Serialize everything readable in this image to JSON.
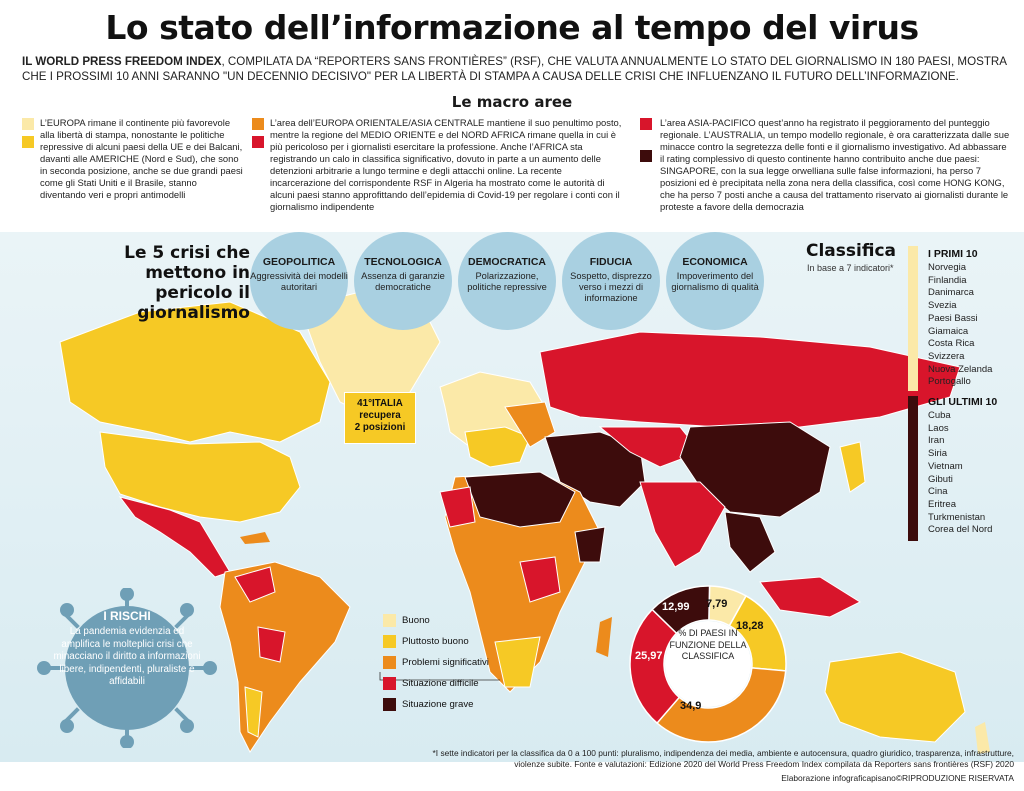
{
  "title": "Lo stato dell’informazione al tempo del virus",
  "subtitle_bold": "IL WORLD PRESS FREEDOM INDEX",
  "subtitle_rest": ", COMPILATA DA “REPORTERS SANS FRONTIÈRES” (RSF), CHE VALUTA ANNUALMENTE LO STATO DEL GIORNALISMO IN 180 PAESI, MOSTRA CHE I PROSSIMI 10 ANNI SARANNO \"UN DECENNIO DECISIVO\" PER LA LIBERTÀ DI STAMPA A CAUSA DELLE CRISI CHE INFLUENZANO IL FUTURO DELL’INFORMAZIONE.",
  "macro_title": "Le macro aree",
  "areas": {
    "europa": "L’EUROPA rimane il continente più favorevole alla libertà di stampa, nonostante le politiche repressive di alcuni paesi della UE e dei Balcani, davanti alle AMERICHE (Nord e Sud), che sono in seconda posizione, anche se due grandi paesi come gli Stati Uniti e il Brasile, stanno diventando veri e propri antimodelli",
    "est": "L’area dell’EUROPA ORIENTALE/ASIA CENTRALE mantiene il suo penultimo posto, mentre la regione del MEDIO ORIENTE e del NORD AFRICA rimane quella in cui è più pericoloso per i giornalisti esercitare la professione. Anche l’AFRICA sta registrando un calo in classifica significativo, dovuto in parte a un aumento delle detenzioni arbitrarie a lungo termine e degli attacchi online. La recente incarcerazione del corrispondente RSF in Algeria ha mostrato come le autorità di alcuni paesi stanno approfittando dell’epidemia di Covid-19 per regolare i conti con il giornalismo indipendente",
    "asia": "L’area ASIA-PACIFICO quest’anno ha registrato il peggioramento del punteggio regionale. L’AUSTRALIA, un tempo modello regionale, è ora caratterizzata dalle sue minacce contro la segretezza delle fonti e il giornalismo investigativo. Ad abbassare il rating complessivo di questo continente hanno contribuito anche due paesi: SINGAPORE, con la sua legge orwelliana sulle false informazioni, ha perso 7 posizioni ed è precipitata nella zona nera della classifica, così come HONG KONG, che ha perso 7 posti anche a causa del trattamento riservato ai giornalisti durante le proteste a favore della democrazia"
  },
  "crisis_heading": "Le 5 crisi che mettono in pericolo il giornalismo",
  "crises": [
    {
      "title": "GEOPOLITICA",
      "desc": "Aggressività dei modelli autoritari"
    },
    {
      "title": "TECNOLOGICA",
      "desc": "Assenza di garanzie democratiche"
    },
    {
      "title": "DEMOCRATICA",
      "desc": "Polarizzazione, politiche repressive"
    },
    {
      "title": "FIDUCIA",
      "desc": "Sospetto, disprezzo verso i mezzi di informazione"
    },
    {
      "title": "ECONOMICA",
      "desc": "Impoverimento del giornalismo di qualità"
    }
  ],
  "classifica": {
    "title": "Classifica",
    "sub": "In base a 7 indicatori*",
    "top_label": "I PRIMI 10",
    "top": [
      "Norvegia",
      "Finlandia",
      "Danimarca",
      "Svezia",
      "Paesi Bassi",
      "Giamaica",
      "Costa Rica",
      "Svizzera",
      "Nuova Zelanda",
      "Portogallo"
    ],
    "bottom_label": "GLI ULTIMI 10",
    "bottom": [
      "Cuba",
      "Laos",
      "Iran",
      "Siria",
      "Vietnam",
      "Gibuti",
      "Cina",
      "Eritrea",
      "Turkmenistan",
      "Corea del Nord"
    ]
  },
  "italia": {
    "line1": "41°ITALIA",
    "line2": "recupera",
    "line3": "2 posizioni"
  },
  "rischi": {
    "title": "I RISCHI",
    "text": "La pandemia evidenzia ed amplifica le molteplici crisi che minacciano il diritto a informazioni libere, indipendenti, pluraliste e affidabili"
  },
  "legend": [
    {
      "label": "Buono",
      "color": "#fbe9a8"
    },
    {
      "label": "Pluttosto buono",
      "color": "#f6c925"
    },
    {
      "label": "Problemi significativi",
      "color": "#ec8b1c"
    },
    {
      "label": "Situazione difficile",
      "color": "#d8152b"
    },
    {
      "label": "Situazione grave",
      "color": "#3d0c0c"
    }
  ],
  "donut": {
    "center": "% DI PAESI IN FUNZIONE DELLA CLASSIFICA",
    "slices": [
      {
        "label": "7,79",
        "value": 7.79,
        "color": "#fbe9a8"
      },
      {
        "label": "18,28",
        "value": 18.28,
        "color": "#f6c925"
      },
      {
        "label": "34,9",
        "value": 34.9,
        "color": "#ec8b1c"
      },
      {
        "label": "25,97",
        "value": 25.97,
        "color": "#d8152b"
      },
      {
        "label": "12,99",
        "value": 12.99,
        "color": "#3d0c0c"
      }
    ]
  },
  "footnote": "*I sette indicatori per la classifica da 0 a 100 punti: pluralismo, indipendenza dei media, ambiente e autocensura, quadro giuridico, trasparenza, infrastrutture, violenze subite. Fonte e valutazioni: Edizione 2020 del World Press Freedom Index compilata da Reporters sans frontières (RSF) 2020",
  "credit": "Elaborazione infograficapisano©RIPRODUZIONE RISERVATA"
}
